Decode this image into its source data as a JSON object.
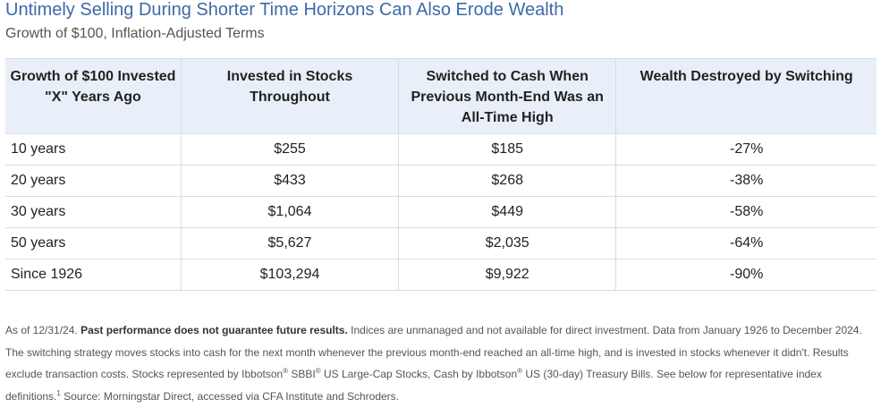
{
  "title": "Untimely Selling During Shorter Time Horizons Can Also Erode Wealth",
  "subtitle": "Growth of $100, Inflation-Adjusted Terms",
  "table": {
    "headers": [
      "Growth of $100 Invested \"X\" Years Ago",
      "Invested in Stocks Throughout",
      "Switched to Cash When Previous Month-End Was an All-Time High",
      "Wealth Destroyed by Switching"
    ],
    "rows": [
      [
        "10 years",
        "$255",
        "$185",
        "-27%"
      ],
      [
        "20 years",
        "$433",
        "$268",
        "-38%"
      ],
      [
        "30 years",
        "$1,064",
        "$449",
        "-58%"
      ],
      [
        "50 years",
        "$5,627",
        "$2,035",
        "-64%"
      ],
      [
        "Since 1926",
        "$103,294",
        "$9,922",
        "-90%"
      ]
    ]
  },
  "footnote": {
    "t1": "As of 12/31/24. ",
    "bold": "Past performance does not guarantee future results.",
    "t2": " Indices are unmanaged and not available for direct investment. Data from January 1926 to December 2024. The switching strategy moves stocks into cash for the next month whenever the previous month-end reached an all-time high, and is invested in stocks whenever it didn't. Results exclude transaction costs. Stocks represented by Ibbotson",
    "reg": "®",
    "t3": " SBBI",
    "t4": " US Large-Cap Stocks, Cash by Ibbotson",
    "t5": " US (30-day) Treasury Bills. See below for representative index definitions.",
    "sup1": "1",
    "t6": " Source: Morningstar Direct, accessed via CFA Institute and Schroders."
  }
}
